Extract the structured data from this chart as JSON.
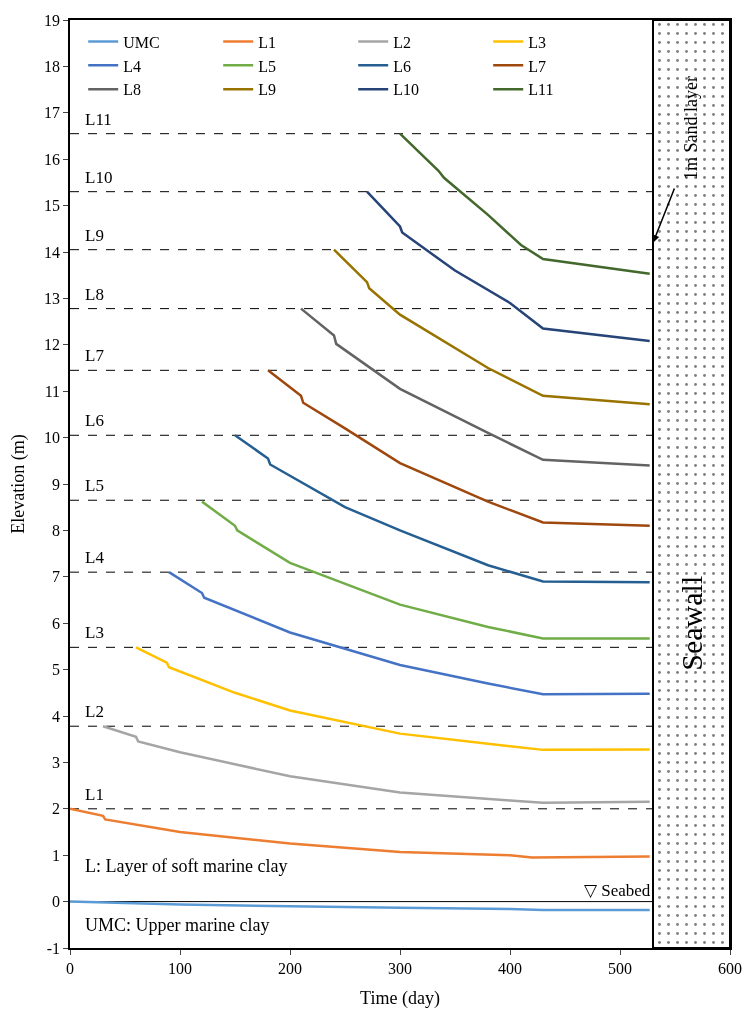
{
  "chart_data": {
    "type": "line",
    "xlabel": "Time (day)",
    "ylabel": "Elevation (m)",
    "xlim": [
      0,
      600
    ],
    "xticks": [
      0,
      100,
      200,
      300,
      400,
      500,
      600
    ],
    "ylim": [
      -1,
      19
    ],
    "yticks": [
      -1,
      0,
      1,
      2,
      3,
      4,
      5,
      6,
      7,
      8,
      9,
      10,
      11,
      12,
      13,
      14,
      15,
      16,
      17,
      18,
      19
    ],
    "grid": false,
    "legend": "top",
    "line_style": "solid",
    "marker": "none",
    "series": [
      {
        "name": "UMC",
        "color": "#5b9bd5",
        "x": [
          0,
          100,
          200,
          300,
          400,
          430,
          527
        ],
        "values": [
          0,
          -0.06,
          -0.1,
          -0.13,
          -0.16,
          -0.18,
          -0.18
        ]
      },
      {
        "name": "L1",
        "color": "#ed7d31",
        "x": [
          0,
          30,
          32,
          100,
          200,
          300,
          400,
          420,
          527
        ],
        "values": [
          2.0,
          1.85,
          1.77,
          1.5,
          1.25,
          1.07,
          1.0,
          0.95,
          0.97
        ]
      },
      {
        "name": "L2",
        "color": "#a5a5a5",
        "x": [
          30,
          60,
          62,
          100,
          200,
          300,
          400,
          430,
          527
        ],
        "values": [
          3.78,
          3.55,
          3.45,
          3.22,
          2.7,
          2.35,
          2.18,
          2.13,
          2.15
        ]
      },
      {
        "name": "L3",
        "color": "#ffc000",
        "x": [
          60,
          88,
          90,
          150,
          200,
          300,
          380,
          430,
          527
        ],
        "values": [
          5.48,
          5.15,
          5.05,
          4.5,
          4.12,
          3.62,
          3.4,
          3.27,
          3.28
        ]
      },
      {
        "name": "L4",
        "color": "#4472c4",
        "x": [
          90,
          120,
          122,
          200,
          300,
          380,
          430,
          527
        ],
        "values": [
          7.1,
          6.65,
          6.55,
          5.8,
          5.1,
          4.7,
          4.47,
          4.48
        ]
      },
      {
        "name": "L5",
        "color": "#70ad47",
        "x": [
          120,
          150,
          152,
          200,
          300,
          380,
          430,
          527
        ],
        "values": [
          8.62,
          8.1,
          8.0,
          7.3,
          6.4,
          5.92,
          5.67,
          5.67
        ]
      },
      {
        "name": "L6",
        "color": "#255e91",
        "x": [
          150,
          180,
          182,
          250,
          300,
          380,
          430,
          527
        ],
        "values": [
          10.05,
          9.55,
          9.42,
          8.5,
          8.0,
          7.25,
          6.9,
          6.88
        ]
      },
      {
        "name": "L7",
        "color": "#9e480e",
        "x": [
          180,
          210,
          212,
          250,
          300,
          380,
          430,
          527
        ],
        "values": [
          11.45,
          10.9,
          10.75,
          10.2,
          9.45,
          8.62,
          8.17,
          8.1
        ]
      },
      {
        "name": "L8",
        "color": "#636363",
        "x": [
          210,
          240,
          242,
          300,
          380,
          430,
          527
        ],
        "values": [
          12.78,
          12.2,
          12.02,
          11.05,
          10.1,
          9.52,
          9.4
        ]
      },
      {
        "name": "L9",
        "color": "#997300",
        "x": [
          240,
          270,
          272,
          300,
          380,
          430,
          527
        ],
        "values": [
          14.05,
          13.35,
          13.22,
          12.65,
          11.5,
          10.9,
          10.72
        ]
      },
      {
        "name": "L10",
        "color": "#264478",
        "x": [
          270,
          300,
          302,
          350,
          400,
          430,
          527
        ],
        "values": [
          15.3,
          14.55,
          14.42,
          13.6,
          12.9,
          12.35,
          12.08
        ]
      },
      {
        "name": "L11",
        "color": "#43682b",
        "x": [
          300,
          335,
          340,
          380,
          410,
          430,
          527
        ],
        "values": [
          16.55,
          15.75,
          15.6,
          14.8,
          14.15,
          13.85,
          13.53
        ]
      }
    ],
    "ref_lines": [
      {
        "axis": "y",
        "value": 0,
        "label": "▽ Seabed",
        "color": "#000000",
        "line_style": "solid"
      },
      {
        "axis": "y",
        "value": 2.0,
        "label": "L1",
        "color": "#000000",
        "line_style": "dashed"
      },
      {
        "axis": "y",
        "value": 3.78,
        "label": "L2",
        "color": "#000000",
        "line_style": "dashed"
      },
      {
        "axis": "y",
        "value": 5.48,
        "label": "L3",
        "color": "#000000",
        "line_style": "dashed"
      },
      {
        "axis": "y",
        "value": 7.1,
        "label": "L4",
        "color": "#000000",
        "line_style": "dashed"
      },
      {
        "axis": "y",
        "value": 8.65,
        "label": "L5",
        "color": "#000000",
        "line_style": "dashed"
      },
      {
        "axis": "y",
        "value": 10.05,
        "label": "L6",
        "color": "#000000",
        "line_style": "dashed"
      },
      {
        "axis": "y",
        "value": 11.45,
        "label": "L7",
        "color": "#000000",
        "line_style": "dashed"
      },
      {
        "axis": "y",
        "value": 12.78,
        "label": "L8",
        "color": "#000000",
        "line_style": "dashed"
      },
      {
        "axis": "y",
        "value": 14.05,
        "label": "L9",
        "color": "#000000",
        "line_style": "dashed"
      },
      {
        "axis": "y",
        "value": 15.3,
        "label": "L10",
        "color": "#000000",
        "line_style": "dashed"
      },
      {
        "axis": "y",
        "value": 16.55,
        "label": "L11",
        "color": "#000000",
        "line_style": "dashed"
      }
    ],
    "bands": [
      {
        "axis": "x",
        "from": 530,
        "to": 600,
        "label": "Seawall",
        "color": "#ffffff"
      }
    ],
    "annotations": [
      "L: Layer of soft marine clay",
      "UMC: Upper marine clay",
      {
        "text": "1m Sand layer",
        "x": 530,
        "y": 14.2
      }
    ]
  }
}
